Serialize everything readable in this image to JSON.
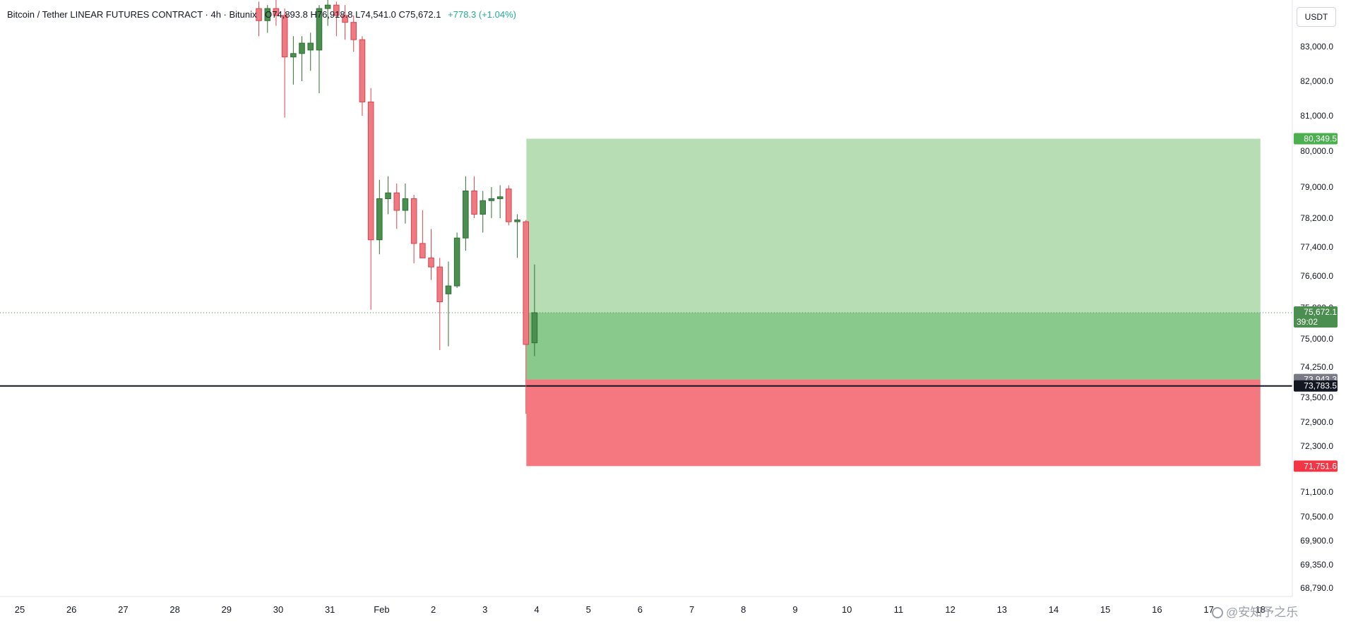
{
  "header": {
    "symbol": "Bitcoin / Tether LINEAR FUTURES CONTRACT · 4h · Bitunix",
    "ohlc": "O74,893.8  H76,918.8  L74,541.0  C75,672.1",
    "change": "+778.3 (+1.04%)"
  },
  "currency_button": "USDT",
  "watermark": "@安知予之乐",
  "colors": {
    "up": "#22ab94",
    "up_candle": "#4a8f4f",
    "down": "#f23645",
    "down_candle": "#f07a82",
    "profit_zone": "#b7ddb5",
    "profit_zone_dark": "#89c98b",
    "loss_zone": "#f5777f"
  },
  "chart_data": {
    "type": "candlestick",
    "timeframe": "4h",
    "y_axis": {
      "ticks": [
        83000,
        82000,
        81000,
        80000,
        79000,
        78200,
        77400,
        76600,
        75800,
        75000,
        74250,
        73500,
        72900,
        72300,
        71700,
        71100,
        70500,
        69900,
        69350,
        68790
      ],
      "tick_labels": [
        "83,000.0",
        "82,000.0",
        "81,000.0",
        "80,000.0",
        "79,000.0",
        "78,200.0",
        "77,400.0",
        "76,600.0",
        "75,800.0",
        "75,000.0",
        "74,250.0",
        "73,500.0",
        "72,900.0",
        "72,300.0",
        "71,700.0",
        "71,100.0",
        "70,500.0",
        "69,900.0",
        "69,350.0",
        "68,790.0"
      ],
      "range": [
        68200,
        83900
      ],
      "scale": "custom"
    },
    "x_axis": {
      "labels": [
        "25",
        "26",
        "27",
        "28",
        "29",
        "30",
        "31",
        "Feb",
        "2",
        "3",
        "4",
        "5",
        "6",
        "7",
        "8",
        "9",
        "10",
        "11",
        "12",
        "13",
        "14",
        "15",
        "16",
        "17",
        "18"
      ],
      "label_day_index": [
        0,
        1,
        2,
        3,
        4,
        5,
        6,
        7,
        8,
        9,
        10,
        11,
        12,
        13,
        14,
        15,
        16,
        17,
        18,
        19,
        20,
        21,
        22,
        23,
        24
      ]
    },
    "candles": [
      {
        "t": 4.625,
        "o": 84100,
        "h": 84300,
        "l": 83300,
        "c": 83750
      },
      {
        "t": 4.792,
        "o": 83750,
        "h": 84200,
        "l": 83400,
        "c": 84100
      },
      {
        "t": 4.958,
        "o": 84100,
        "h": 84400,
        "l": 83600,
        "c": 83900
      },
      {
        "t": 5.125,
        "o": 83900,
        "h": 84100,
        "l": 80950,
        "c": 82700
      },
      {
        "t": 5.292,
        "o": 82700,
        "h": 83300,
        "l": 81900,
        "c": 82800
      },
      {
        "t": 5.458,
        "o": 82800,
        "h": 83300,
        "l": 82000,
        "c": 83100
      },
      {
        "t": 5.625,
        "o": 82900,
        "h": 83400,
        "l": 82300,
        "c": 83100
      },
      {
        "t": 5.792,
        "o": 82900,
        "h": 84200,
        "l": 81650,
        "c": 84100
      },
      {
        "t": 5.958,
        "o": 84100,
        "h": 84400,
        "l": 83600,
        "c": 84200
      },
      {
        "t": 6.125,
        "o": 84200,
        "h": 84300,
        "l": 83300,
        "c": 83900
      },
      {
        "t": 6.292,
        "o": 83900,
        "h": 84200,
        "l": 83200,
        "c": 83700
      },
      {
        "t": 6.458,
        "o": 83700,
        "h": 83900,
        "l": 82850,
        "c": 83200
      },
      {
        "t": 6.625,
        "o": 83200,
        "h": 83300,
        "l": 81000,
        "c": 81400
      },
      {
        "t": 6.792,
        "o": 81400,
        "h": 81800,
        "l": 75750,
        "c": 77600
      },
      {
        "t": 6.958,
        "o": 77600,
        "h": 79200,
        "l": 77200,
        "c": 78700
      },
      {
        "t": 7.125,
        "o": 78700,
        "h": 79300,
        "l": 78300,
        "c": 78850
      },
      {
        "t": 7.292,
        "o": 78850,
        "h": 79100,
        "l": 77900,
        "c": 78400
      },
      {
        "t": 7.458,
        "o": 78400,
        "h": 79100,
        "l": 78050,
        "c": 78700
      },
      {
        "t": 7.625,
        "o": 78700,
        "h": 78800,
        "l": 76950,
        "c": 77500
      },
      {
        "t": 7.792,
        "o": 77500,
        "h": 78400,
        "l": 77150,
        "c": 77100
      },
      {
        "t": 7.958,
        "o": 77100,
        "h": 77900,
        "l": 76500,
        "c": 76850
      },
      {
        "t": 8.125,
        "o": 76850,
        "h": 77100,
        "l": 74700,
        "c": 75950
      },
      {
        "t": 8.292,
        "o": 76150,
        "h": 77000,
        "l": 74800,
        "c": 76350
      },
      {
        "t": 8.458,
        "o": 76350,
        "h": 77800,
        "l": 76300,
        "c": 77650
      },
      {
        "t": 8.625,
        "o": 77650,
        "h": 79300,
        "l": 77300,
        "c": 78900
      },
      {
        "t": 8.792,
        "o": 78900,
        "h": 79300,
        "l": 78200,
        "c": 78300
      },
      {
        "t": 8.958,
        "o": 78300,
        "h": 78900,
        "l": 77800,
        "c": 78650
      },
      {
        "t": 9.125,
        "o": 78650,
        "h": 79000,
        "l": 78200,
        "c": 78700
      },
      {
        "t": 9.292,
        "o": 78700,
        "h": 79050,
        "l": 78200,
        "c": 78750
      },
      {
        "t": 9.458,
        "o": 78950,
        "h": 79050,
        "l": 78000,
        "c": 78100
      },
      {
        "t": 9.625,
        "o": 78100,
        "h": 78300,
        "l": 77100,
        "c": 78150
      },
      {
        "t": 9.792,
        "o": 78100,
        "h": 78150,
        "l": 73100,
        "c": 74850
      },
      {
        "t": 9.958,
        "o": 74893.8,
        "h": 76918.8,
        "l": 74541.0,
        "c": 75672.1
      }
    ],
    "current_price": 75672.1,
    "current_price_label": "75,672.1",
    "countdown": "39:02",
    "horizontal_line": 73783.5,
    "horizontal_line_label": "73,783.5",
    "position": {
      "type": "long",
      "entry": 73943.3,
      "entry_label": "73,943.3",
      "take_profit": 80349.5,
      "take_profit_label": "80,349.5",
      "stop_loss": 71751.6,
      "stop_loss_label": "71,751.6",
      "start_day": 9.8,
      "end_day": 24.0
    }
  }
}
